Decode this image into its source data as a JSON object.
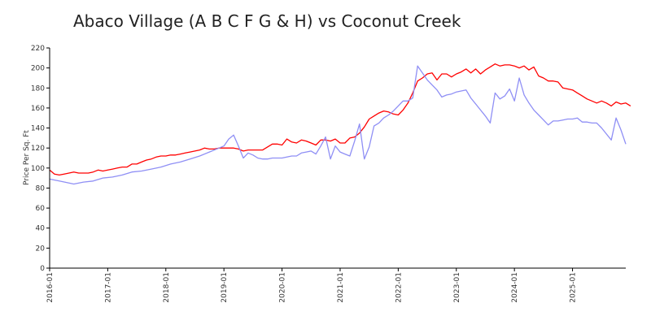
{
  "chart_data": {
    "type": "line",
    "title": "Abaco Village (A B C F G & H) vs Coconut Creek",
    "ylabel": "Price Per Sq. Ft",
    "xlabel": "",
    "ylim": [
      0,
      220
    ],
    "yticks": [
      0,
      20,
      40,
      60,
      80,
      100,
      120,
      140,
      160,
      180,
      200,
      220
    ],
    "xtick_labels": [
      "2016-01",
      "2017-01",
      "2018-01",
      "2019-01",
      "2020-01",
      "2021-01",
      "2022-01",
      "2023-01",
      "2024-01",
      "2025-01"
    ],
    "x_start": "2016-01",
    "x_end": "2025-12",
    "grid": false,
    "legend": "none",
    "series": [
      {
        "color": "#ff0000",
        "points": [
          [
            "2016-01",
            98
          ],
          [
            "2016-02",
            94
          ],
          [
            "2016-03",
            93
          ],
          [
            "2016-04",
            94
          ],
          [
            "2016-05",
            95
          ],
          [
            "2016-06",
            96
          ],
          [
            "2016-07",
            95
          ],
          [
            "2016-08",
            95
          ],
          [
            "2016-09",
            95
          ],
          [
            "2016-10",
            96
          ],
          [
            "2016-11",
            98
          ],
          [
            "2016-12",
            97
          ],
          [
            "2017-01",
            98
          ],
          [
            "2017-02",
            99
          ],
          [
            "2017-03",
            100
          ],
          [
            "2017-04",
            101
          ],
          [
            "2017-05",
            101
          ],
          [
            "2017-06",
            104
          ],
          [
            "2017-07",
            104
          ],
          [
            "2017-08",
            106
          ],
          [
            "2017-09",
            108
          ],
          [
            "2017-10",
            109
          ],
          [
            "2017-11",
            111
          ],
          [
            "2017-12",
            112
          ],
          [
            "2018-01",
            112
          ],
          [
            "2018-02",
            113
          ],
          [
            "2018-03",
            113
          ],
          [
            "2018-04",
            114
          ],
          [
            "2018-05",
            115
          ],
          [
            "2018-06",
            116
          ],
          [
            "2018-07",
            117
          ],
          [
            "2018-08",
            118
          ],
          [
            "2018-09",
            120
          ],
          [
            "2018-10",
            119
          ],
          [
            "2018-11",
            119
          ],
          [
            "2018-12",
            120
          ],
          [
            "2019-01",
            120
          ],
          [
            "2019-02",
            120
          ],
          [
            "2019-03",
            120
          ],
          [
            "2019-04",
            119
          ],
          [
            "2019-05",
            117
          ],
          [
            "2019-06",
            118
          ],
          [
            "2019-07",
            118
          ],
          [
            "2019-08",
            118
          ],
          [
            "2019-09",
            118
          ],
          [
            "2019-10",
            121
          ],
          [
            "2019-11",
            124
          ],
          [
            "2019-12",
            124
          ],
          [
            "2020-01",
            123
          ],
          [
            "2020-02",
            129
          ],
          [
            "2020-03",
            126
          ],
          [
            "2020-04",
            125
          ],
          [
            "2020-05",
            128
          ],
          [
            "2020-06",
            127
          ],
          [
            "2020-07",
            125
          ],
          [
            "2020-08",
            123
          ],
          [
            "2020-09",
            128
          ],
          [
            "2020-10",
            128
          ],
          [
            "2020-11",
            127
          ],
          [
            "2020-12",
            129
          ],
          [
            "2021-01",
            125
          ],
          [
            "2021-02",
            125
          ],
          [
            "2021-03",
            130
          ],
          [
            "2021-04",
            131
          ],
          [
            "2021-05",
            135
          ],
          [
            "2021-06",
            141
          ],
          [
            "2021-07",
            149
          ],
          [
            "2021-08",
            152
          ],
          [
            "2021-09",
            155
          ],
          [
            "2021-10",
            157
          ],
          [
            "2021-11",
            156
          ],
          [
            "2021-12",
            154
          ],
          [
            "2022-01",
            153
          ],
          [
            "2022-02",
            158
          ],
          [
            "2022-03",
            165
          ],
          [
            "2022-04",
            175
          ],
          [
            "2022-05",
            187
          ],
          [
            "2022-06",
            190
          ],
          [
            "2022-07",
            194
          ],
          [
            "2022-08",
            195
          ],
          [
            "2022-09",
            188
          ],
          [
            "2022-10",
            194
          ],
          [
            "2022-11",
            194
          ],
          [
            "2022-12",
            191
          ],
          [
            "2023-01",
            194
          ],
          [
            "2023-02",
            196
          ],
          [
            "2023-03",
            199
          ],
          [
            "2023-04",
            195
          ],
          [
            "2023-05",
            199
          ],
          [
            "2023-06",
            194
          ],
          [
            "2023-07",
            198
          ],
          [
            "2023-08",
            201
          ],
          [
            "2023-09",
            204
          ],
          [
            "2023-10",
            202
          ],
          [
            "2023-11",
            203
          ],
          [
            "2023-12",
            203
          ],
          [
            "2024-01",
            202
          ],
          [
            "2024-02",
            200
          ],
          [
            "2024-03",
            202
          ],
          [
            "2024-04",
            198
          ],
          [
            "2024-05",
            201
          ],
          [
            "2024-06",
            192
          ],
          [
            "2024-07",
            190
          ],
          [
            "2024-08",
            187
          ],
          [
            "2024-09",
            187
          ],
          [
            "2024-10",
            186
          ],
          [
            "2024-11",
            180
          ],
          [
            "2024-12",
            179
          ],
          [
            "2025-01",
            178
          ],
          [
            "2025-02",
            175
          ],
          [
            "2025-03",
            172
          ],
          [
            "2025-04",
            169
          ],
          [
            "2025-05",
            167
          ],
          [
            "2025-06",
            165
          ],
          [
            "2025-07",
            167
          ],
          [
            "2025-08",
            165
          ],
          [
            "2025-09",
            162
          ],
          [
            "2025-10",
            166
          ],
          [
            "2025-11",
            164
          ],
          [
            "2025-12",
            165
          ],
          [
            "2026-01",
            162
          ]
        ]
      },
      {
        "color": "#8f8ff5",
        "points": [
          [
            "2016-01",
            89
          ],
          [
            "2016-03",
            87
          ],
          [
            "2016-05",
            85
          ],
          [
            "2016-06",
            84
          ],
          [
            "2016-08",
            86
          ],
          [
            "2016-10",
            87
          ],
          [
            "2016-12",
            90
          ],
          [
            "2017-02",
            91
          ],
          [
            "2017-04",
            93
          ],
          [
            "2017-06",
            96
          ],
          [
            "2017-08",
            97
          ],
          [
            "2017-10",
            99
          ],
          [
            "2017-12",
            101
          ],
          [
            "2018-02",
            104
          ],
          [
            "2018-04",
            106
          ],
          [
            "2018-06",
            109
          ],
          [
            "2018-08",
            112
          ],
          [
            "2018-10",
            116
          ],
          [
            "2018-12",
            120
          ],
          [
            "2019-01",
            122
          ],
          [
            "2019-02",
            129
          ],
          [
            "2019-03",
            133
          ],
          [
            "2019-04",
            122
          ],
          [
            "2019-05",
            110
          ],
          [
            "2019-06",
            115
          ],
          [
            "2019-07",
            113
          ],
          [
            "2019-08",
            110
          ],
          [
            "2019-09",
            109
          ],
          [
            "2019-10",
            109
          ],
          [
            "2019-11",
            110
          ],
          [
            "2019-12",
            110
          ],
          [
            "2020-01",
            110
          ],
          [
            "2020-02",
            111
          ],
          [
            "2020-03",
            112
          ],
          [
            "2020-04",
            112
          ],
          [
            "2020-05",
            115
          ],
          [
            "2020-06",
            116
          ],
          [
            "2020-07",
            117
          ],
          [
            "2020-08",
            114
          ],
          [
            "2020-09",
            122
          ],
          [
            "2020-10",
            131
          ],
          [
            "2020-11",
            109
          ],
          [
            "2020-12",
            122
          ],
          [
            "2021-01",
            116
          ],
          [
            "2021-02",
            114
          ],
          [
            "2021-03",
            112
          ],
          [
            "2021-04",
            127
          ],
          [
            "2021-05",
            144
          ],
          [
            "2021-06",
            109
          ],
          [
            "2021-07",
            121
          ],
          [
            "2021-08",
            142
          ],
          [
            "2021-09",
            145
          ],
          [
            "2021-10",
            150
          ],
          [
            "2021-11",
            153
          ],
          [
            "2021-12",
            157
          ],
          [
            "2022-01",
            162
          ],
          [
            "2022-02",
            167
          ],
          [
            "2022-03",
            167
          ],
          [
            "2022-04",
            170
          ],
          [
            "2022-05",
            202
          ],
          [
            "2022-06",
            195
          ],
          [
            "2022-07",
            188
          ],
          [
            "2022-08",
            183
          ],
          [
            "2022-09",
            178
          ],
          [
            "2022-10",
            171
          ],
          [
            "2022-11",
            173
          ],
          [
            "2022-12",
            174
          ],
          [
            "2023-01",
            176
          ],
          [
            "2023-02",
            177
          ],
          [
            "2023-03",
            178
          ],
          [
            "2023-04",
            170
          ],
          [
            "2023-05",
            164
          ],
          [
            "2023-06",
            158
          ],
          [
            "2023-07",
            152
          ],
          [
            "2023-08",
            145
          ],
          [
            "2023-09",
            175
          ],
          [
            "2023-10",
            169
          ],
          [
            "2023-11",
            172
          ],
          [
            "2023-12",
            179
          ],
          [
            "2024-01",
            167
          ],
          [
            "2024-02",
            190
          ],
          [
            "2024-03",
            173
          ],
          [
            "2024-04",
            165
          ],
          [
            "2024-05",
            158
          ],
          [
            "2024-06",
            153
          ],
          [
            "2024-07",
            148
          ],
          [
            "2024-08",
            143
          ],
          [
            "2024-09",
            147
          ],
          [
            "2024-10",
            147
          ],
          [
            "2024-11",
            148
          ],
          [
            "2024-12",
            149
          ],
          [
            "2025-01",
            149
          ],
          [
            "2025-02",
            150
          ],
          [
            "2025-03",
            146
          ],
          [
            "2025-04",
            146
          ],
          [
            "2025-05",
            145
          ],
          [
            "2025-06",
            145
          ],
          [
            "2025-07",
            140
          ],
          [
            "2025-08",
            134
          ],
          [
            "2025-09",
            128
          ],
          [
            "2025-10",
            150
          ],
          [
            "2025-11",
            138
          ],
          [
            "2025-12",
            124
          ]
        ]
      }
    ]
  }
}
